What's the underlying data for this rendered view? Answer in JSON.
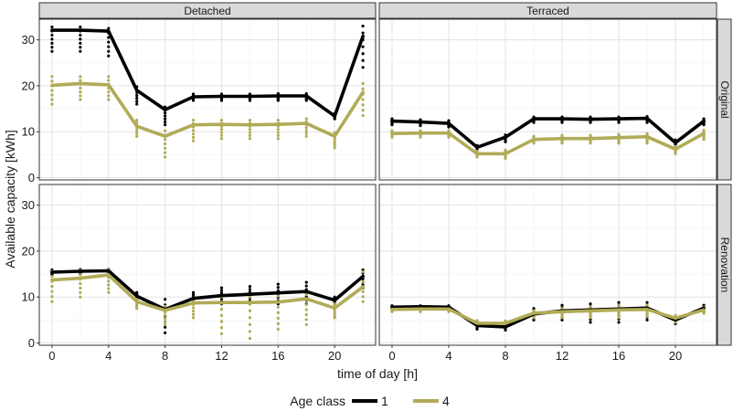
{
  "chart_data": {
    "type": "line",
    "xlabel": "time of day [h]",
    "ylabel": "Available capacity [kWh]",
    "x_ticks": [
      0,
      4,
      8,
      12,
      16,
      20
    ],
    "y_ticks": [
      0,
      10,
      20,
      30
    ],
    "xlim": [
      -0.9,
      22.9
    ],
    "ylim": [
      -0.5,
      34.5
    ],
    "columns": [
      "Detached",
      "Terraced"
    ],
    "rows": [
      "Original",
      "Renovation"
    ],
    "grid": true,
    "legend": {
      "title": "Age class",
      "position": "bottom",
      "entries": [
        {
          "label": "1",
          "color": "#000000"
        },
        {
          "label": "4",
          "color": "#b0ab56"
        }
      ]
    },
    "x": [
      0,
      2,
      4,
      6,
      8,
      10,
      12,
      14,
      16,
      18,
      20,
      22
    ],
    "panels": [
      {
        "row": "Original",
        "col": "Detached",
        "series": [
          {
            "age_class": "1",
            "values": [
              32.1,
              32.1,
              31.9,
              19.0,
              14.8,
              17.6,
              17.7,
              17.7,
              17.8,
              17.8,
              13.4,
              30.8
            ],
            "spread_min": [
              27.5,
              27.5,
              26.5,
              16.0,
              11.5,
              16.8,
              16.8,
              16.8,
              16.8,
              16.8,
              12.8,
              24.0
            ],
            "spread_max": [
              32.8,
              32.8,
              32.5,
              19.8,
              15.4,
              18.2,
              18.2,
              18.2,
              18.3,
              18.3,
              14.0,
              33.0
            ]
          },
          {
            "age_class": "4",
            "values": [
              20.1,
              20.5,
              20.2,
              11.2,
              9.0,
              11.5,
              11.6,
              11.5,
              11.6,
              11.8,
              9.0,
              18.6
            ],
            "spread_min": [
              16.0,
              17.0,
              17.0,
              9.0,
              4.5,
              8.0,
              8.5,
              8.5,
              8.5,
              9.0,
              6.5,
              13.5
            ],
            "spread_max": [
              22.0,
              22.0,
              22.0,
              12.5,
              10.2,
              12.5,
              12.5,
              12.5,
              12.5,
              12.8,
              9.8,
              20.5
            ]
          }
        ]
      },
      {
        "row": "Original",
        "col": "Terraced",
        "series": [
          {
            "age_class": "1",
            "values": [
              12.3,
              12.1,
              11.8,
              6.6,
              8.8,
              12.8,
              12.8,
              12.7,
              12.8,
              12.9,
              7.6,
              12.3
            ],
            "spread_min": [
              11.5,
              11.3,
              11.0,
              5.8,
              7.8,
              12.0,
              12.0,
              12.0,
              12.0,
              12.0,
              7.0,
              11.5
            ],
            "spread_max": [
              12.8,
              12.6,
              12.4,
              7.0,
              9.3,
              13.2,
              13.2,
              13.2,
              13.2,
              13.3,
              8.2,
              12.8
            ]
          },
          {
            "age_class": "4",
            "values": [
              9.6,
              9.7,
              9.7,
              5.2,
              5.2,
              8.3,
              8.5,
              8.5,
              8.7,
              8.9,
              6.2,
              9.6
            ],
            "spread_min": [
              8.8,
              8.8,
              8.8,
              4.5,
              4.2,
              7.5,
              7.5,
              7.5,
              7.5,
              7.5,
              5.2,
              8.3
            ],
            "spread_max": [
              10.2,
              10.2,
              10.2,
              5.8,
              6.0,
              9.0,
              9.2,
              9.2,
              9.4,
              9.6,
              6.8,
              10.3
            ]
          }
        ]
      },
      {
        "row": "Renovation",
        "col": "Detached",
        "series": [
          {
            "age_class": "1",
            "values": [
              15.4,
              15.6,
              15.7,
              10.2,
              7.3,
              9.7,
              10.3,
              10.6,
              10.9,
              11.2,
              9.3,
              14.5
            ],
            "spread_min": [
              14.8,
              15.0,
              15.0,
              9.5,
              2.2,
              8.5,
              8.5,
              8.5,
              8.5,
              8.5,
              8.5,
              12.0
            ],
            "spread_max": [
              15.9,
              16.0,
              16.0,
              11.0,
              9.5,
              11.0,
              12.0,
              12.3,
              12.8,
              13.2,
              10.0,
              15.9
            ]
          },
          {
            "age_class": "4",
            "values": [
              13.7,
              14.1,
              14.8,
              9.0,
              7.1,
              8.7,
              8.8,
              8.8,
              8.9,
              9.6,
              7.6,
              12.2
            ],
            "spread_min": [
              9.0,
              10.0,
              11.0,
              7.5,
              4.0,
              5.5,
              2.0,
              1.0,
              3.0,
              4.0,
              5.5,
              9.0
            ],
            "spread_max": [
              15.6,
              15.8,
              15.9,
              10.0,
              8.0,
              9.8,
              10.0,
              10.0,
              10.2,
              10.5,
              8.5,
              15.5
            ]
          }
        ]
      },
      {
        "row": "Renovation",
        "col": "Terraced",
        "series": [
          {
            "age_class": "1",
            "values": [
              7.8,
              7.9,
              7.8,
              3.8,
              3.5,
              6.3,
              7.0,
              7.2,
              7.4,
              7.6,
              5.0,
              7.6
            ],
            "spread_min": [
              7.3,
              7.3,
              7.3,
              3.0,
              2.8,
              5.0,
              5.0,
              4.5,
              4.5,
              5.0,
              4.2,
              6.5
            ],
            "spread_max": [
              8.1,
              8.1,
              8.1,
              4.8,
              4.6,
              7.5,
              8.2,
              8.5,
              8.8,
              8.8,
              5.8,
              8.2
            ]
          },
          {
            "age_class": "4",
            "values": [
              7.3,
              7.4,
              7.4,
              4.3,
              4.3,
              6.5,
              6.8,
              7.0,
              7.2,
              7.3,
              5.4,
              7.2
            ],
            "spread_min": [
              6.8,
              6.8,
              6.8,
              3.8,
              3.6,
              5.5,
              5.5,
              5.5,
              5.5,
              5.8,
              4.5,
              6.5
            ],
            "spread_max": [
              7.7,
              7.7,
              7.7,
              4.8,
              4.8,
              7.0,
              7.5,
              7.8,
              8.0,
              8.2,
              6.0,
              7.8
            ]
          }
        ]
      }
    ]
  }
}
